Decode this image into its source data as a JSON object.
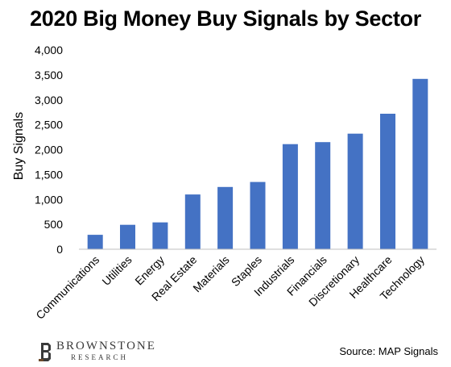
{
  "chart_data": {
    "type": "bar",
    "title": "2020 Big Money Buy Signals by Sector",
    "ylabel": "Buy Signals",
    "xlabel": "",
    "categories": [
      "Communications",
      "Utilities",
      "Energy",
      "Real Estate",
      "Materials",
      "Staples",
      "Industrials",
      "Financials",
      "Discretionary",
      "Healthcare",
      "Technology"
    ],
    "values": [
      290,
      490,
      540,
      1100,
      1250,
      1350,
      2110,
      2150,
      2320,
      2720,
      3420
    ],
    "ylim": [
      0,
      4000
    ],
    "yticks": [
      0,
      500,
      1000,
      1500,
      2000,
      2500,
      3000,
      3500,
      4000
    ],
    "ytick_labels": [
      "0",
      "500",
      "1,000",
      "1,500",
      "2,000",
      "2,500",
      "3,000",
      "3,500",
      "4,000"
    ],
    "bar_color": "#4472C4",
    "grid": false,
    "legend": false
  },
  "footer": {
    "logo_name": "BROWNSTONE",
    "logo_sub": "RESEARCH",
    "source": "Source: MAP Signals"
  }
}
